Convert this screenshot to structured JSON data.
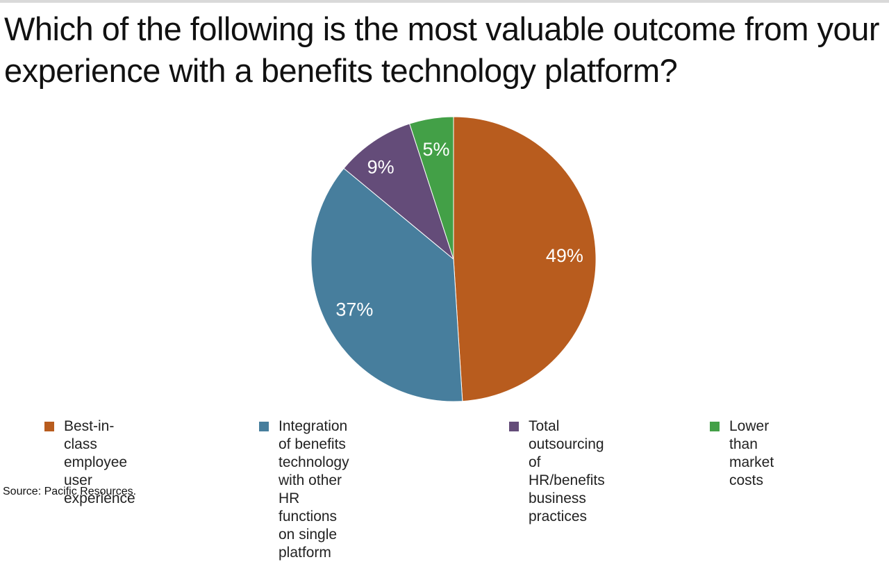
{
  "title": "Which of the following is the most valuable outcome from your experience with a benefits technology platform?",
  "source": "Source: Pacific Resources.",
  "chart_data": {
    "type": "pie",
    "title": "Which of the following is the most valuable outcome from your experience with a benefits technology platform?",
    "unit": "%",
    "slices": [
      {
        "label": "Best-in-class employee user experience",
        "value": 49,
        "display": "49%",
        "color": "#b85c1e",
        "legend_lines": [
          "Best-in-class employee",
          "user experience"
        ]
      },
      {
        "label": "Integration of benefits technology with other HR functions on single platform",
        "value": 37,
        "display": "37%",
        "color": "#477e9d",
        "legend_lines": [
          "Integration of benefits",
          "technology with other HR",
          "functions on single platform"
        ]
      },
      {
        "label": "Total outsourcing of HR/benefits business practices",
        "value": 9,
        "display": "9%",
        "color": "#644c79",
        "legend_lines": [
          "Total outsourcing of",
          "HR/benefits business",
          "practices"
        ]
      },
      {
        "label": "Lower than market costs",
        "value": 5,
        "display": "5%",
        "color": "#43a047",
        "legend_lines": [
          "Lower than",
          "market costs"
        ]
      }
    ],
    "legend_position": "bottom"
  }
}
